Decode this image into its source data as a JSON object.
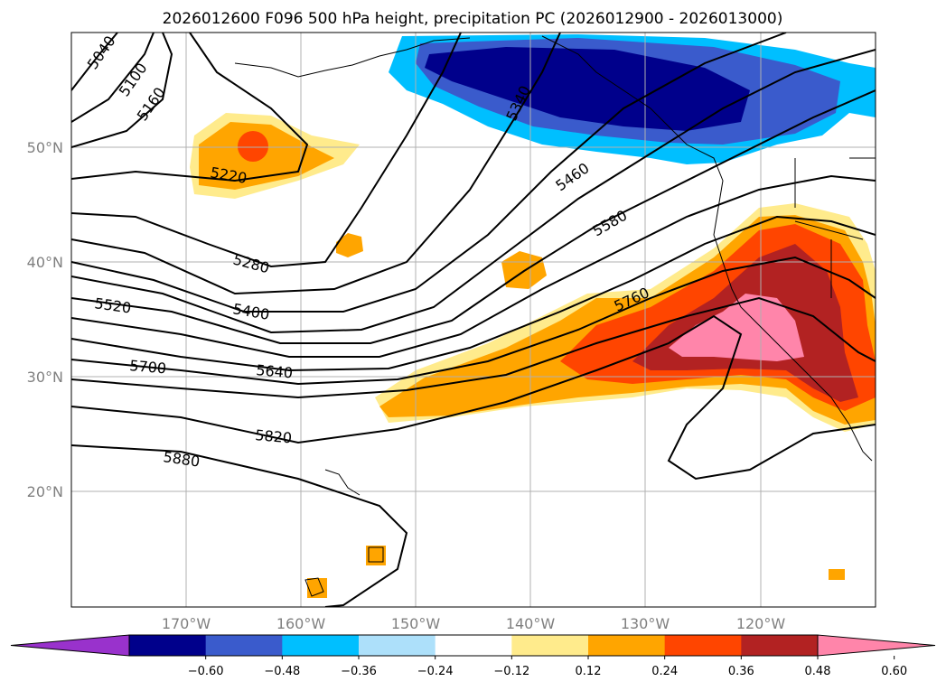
{
  "title": "2026012600 F096 500 hPa height, precipitation PC (2026012900 - 2026013000)",
  "map": {
    "lat_labels": [
      "50°N",
      "40°N",
      "30°N",
      "20°N"
    ],
    "lon_labels": [
      "170°W",
      "160°W",
      "150°W",
      "140°W",
      "130°W",
      "120°W"
    ],
    "contour_labels": [
      "5040",
      "5100",
      "5160",
      "5220",
      "5280",
      "5340",
      "5400",
      "5460",
      "5520",
      "5580",
      "5640",
      "5700",
      "5760",
      "5820",
      "5880"
    ],
    "colors": {
      "grid": "#b0b0b0",
      "coast": "#000000",
      "contour": "#000000"
    }
  },
  "colorbar": {
    "ticks": [
      "−0.60",
      "−0.48",
      "−0.36",
      "−0.24",
      "−0.12",
      "0.12",
      "0.24",
      "0.36",
      "0.48",
      "0.60"
    ],
    "colors": [
      "#9932CC",
      "#00008B",
      "#3A5BCC",
      "#00BFFF",
      "#ADE0FA",
      "#FFFFFF",
      "#FFEB8C",
      "#FFA500",
      "#FF4500",
      "#B22222",
      "#FF85AA"
    ]
  }
}
